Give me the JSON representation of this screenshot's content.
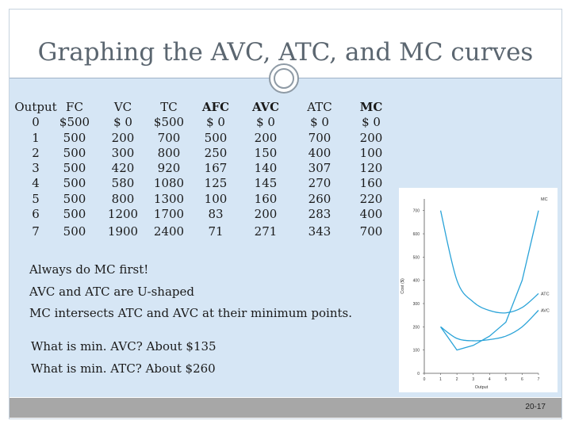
{
  "slide": {
    "title": "Graphing the  AVC, ATC, and MC curves",
    "page_number": "20-17"
  },
  "table": {
    "headers": [
      "Output",
      "FC",
      "VC",
      "TC",
      "AFC",
      "AVC",
      "ATC",
      "MC"
    ],
    "bold_headers": [
      "AFC",
      "AVC",
      "MC"
    ],
    "rows": [
      [
        "0",
        "$500",
        "$  0",
        "$500",
        "$  0",
        "$  0",
        "$  0",
        "$  0"
      ],
      [
        "1",
        "500",
        "200",
        "700",
        "500",
        "200",
        "700",
        "200"
      ],
      [
        "2",
        "500",
        "300",
        "800",
        "250",
        "150",
        "400",
        "100"
      ],
      [
        "3",
        "500",
        "420",
        "920",
        "167",
        "140",
        "307",
        "120"
      ],
      [
        "4",
        "500",
        "580",
        "1080",
        "125",
        "145",
        "270",
        "160"
      ],
      [
        "5",
        "500",
        "800",
        "1300",
        "100",
        "160",
        "260",
        "220"
      ],
      [
        "6",
        "500",
        "1200",
        "1700",
        "83",
        "200",
        "283",
        "400"
      ],
      [
        "7",
        "500",
        "1900",
        "2400",
        "71",
        "271",
        "343",
        "700"
      ]
    ]
  },
  "notes": {
    "always_mc": "Always do MC first!",
    "u_shaped": "AVC and ATC are U-shaped",
    "intersects": "MC intersects ATC and AVC at their minimum points.",
    "min_avc": "What is min. AVC?  About $135",
    "min_atc": "What is min. ATC?  About $260"
  },
  "chart_data": {
    "type": "line",
    "title": "",
    "xlabel": "Output",
    "ylabel": "Cost ($)",
    "xlim": [
      0,
      7
    ],
    "ylim": [
      0,
      750
    ],
    "x_ticks": [
      "0",
      "1",
      "2",
      "3",
      "4",
      "5",
      "6",
      "7"
    ],
    "y_ticks": [
      "0",
      "100",
      "200",
      "300",
      "400",
      "500",
      "600",
      "700"
    ],
    "series": [
      {
        "name": "MC",
        "color": "#2aa3d8",
        "x": [
          1,
          2,
          3,
          4,
          5,
          6,
          7
        ],
        "y": [
          200,
          100,
          120,
          160,
          220,
          400,
          700
        ]
      },
      {
        "name": "ATC",
        "color": "#2aa3d8",
        "x": [
          1,
          2,
          3,
          4,
          5,
          6,
          7
        ],
        "y": [
          700,
          400,
          307,
          270,
          260,
          283,
          343
        ]
      },
      {
        "name": "AVC",
        "color": "#2aa3d8",
        "x": [
          1,
          2,
          3,
          4,
          5,
          6,
          7
        ],
        "y": [
          200,
          150,
          140,
          145,
          160,
          200,
          271
        ]
      }
    ]
  }
}
